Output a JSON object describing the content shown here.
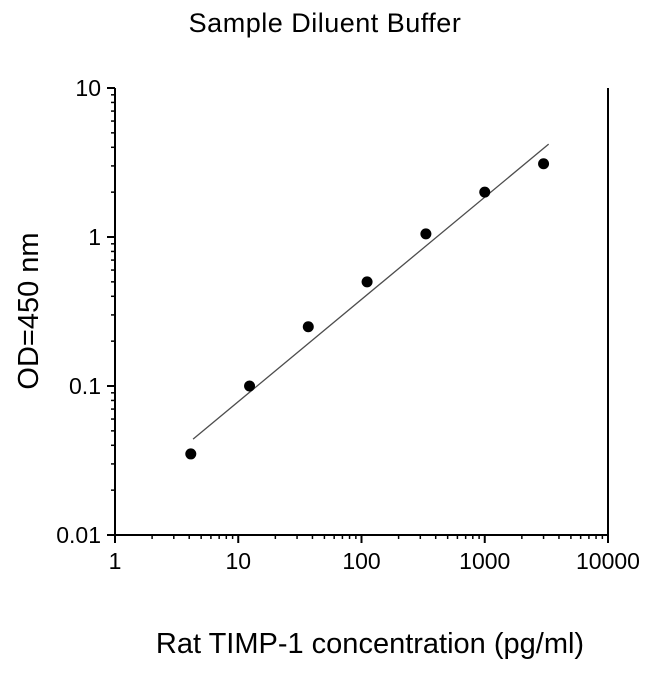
{
  "chart_data": {
    "type": "scatter",
    "title": "Sample Diluent Buffer",
    "xlabel": "Rat TIMP-1 concentration (pg/ml)",
    "ylabel": "OD=450 nm",
    "x_scale": "log",
    "y_scale": "log",
    "xlim": [
      1,
      10000
    ],
    "ylim": [
      0.01,
      10
    ],
    "grid": false,
    "legend": "none",
    "axis_color": "#000000",
    "x_ticks": [
      {
        "value": 1,
        "label": "1"
      },
      {
        "value": 10,
        "label": "10"
      },
      {
        "value": 100,
        "label": "100"
      },
      {
        "value": 1000,
        "label": "1000"
      },
      {
        "value": 10000,
        "label": "10000"
      }
    ],
    "y_ticks": [
      {
        "value": 0.01,
        "label": "0.01"
      },
      {
        "value": 0.1,
        "label": "0.1"
      },
      {
        "value": 1,
        "label": "1"
      },
      {
        "value": 10,
        "label": "10"
      }
    ],
    "series": [
      {
        "name": "standard-curve-fit-line",
        "type": "line",
        "color": "#4d4d4d",
        "points": [
          {
            "x": 4.3,
            "y": 0.044
          },
          {
            "x": 3300,
            "y": 4.2
          }
        ]
      },
      {
        "name": "standards",
        "type": "scatter",
        "marker": "filled-circle",
        "color": "#000000",
        "points": [
          {
            "x": 4.12,
            "y": 0.035
          },
          {
            "x": 12.35,
            "y": 0.1
          },
          {
            "x": 37,
            "y": 0.25
          },
          {
            "x": 111,
            "y": 0.5
          },
          {
            "x": 333,
            "y": 1.05
          },
          {
            "x": 1000,
            "y": 2.0
          },
          {
            "x": 3000,
            "y": 3.1
          }
        ]
      }
    ]
  }
}
